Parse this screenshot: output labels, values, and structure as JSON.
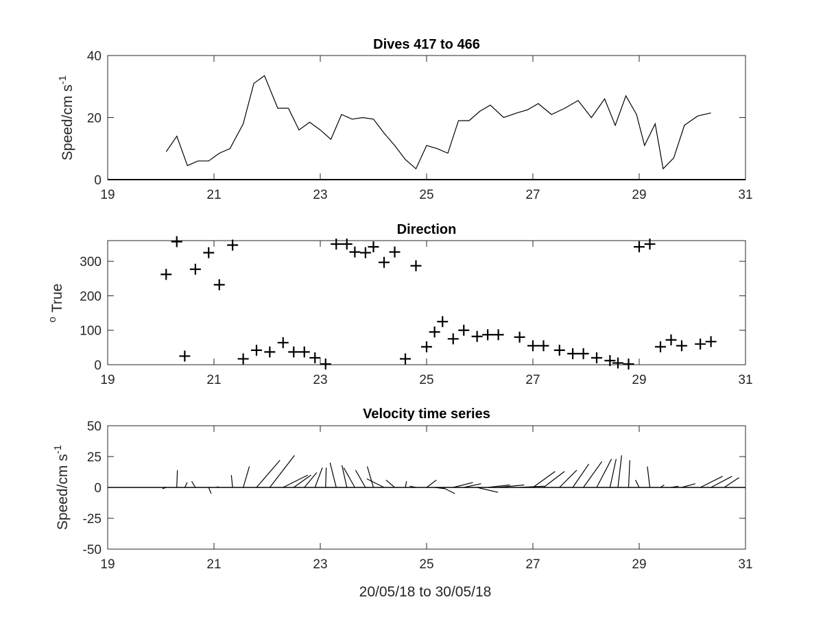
{
  "chart_data": [
    {
      "type": "line",
      "title": "Dives 417 to 466",
      "ylabel": "Speed/cm s",
      "ylabel_sup": "-1",
      "xlim": [
        19,
        31
      ],
      "ylim": [
        0,
        40
      ],
      "xticks": [
        19,
        21,
        23,
        25,
        27,
        29,
        31
      ],
      "yticks": [
        0,
        20,
        40
      ],
      "baseline": 0,
      "x": [
        20.1,
        20.3,
        20.5,
        20.7,
        20.9,
        21.1,
        21.3,
        21.55,
        21.75,
        21.95,
        22.2,
        22.4,
        22.6,
        22.8,
        23.0,
        23.2,
        23.4,
        23.6,
        23.8,
        24.0,
        24.2,
        24.4,
        24.6,
        24.8,
        25.0,
        25.2,
        25.4,
        25.6,
        25.8,
        26.0,
        26.2,
        26.45,
        26.7,
        26.9,
        27.1,
        27.35,
        27.6,
        27.85,
        28.1,
        28.35,
        28.55,
        28.75,
        28.95,
        29.1,
        29.3,
        29.45,
        29.65,
        29.85,
        30.1,
        30.35
      ],
      "y": [
        9,
        14,
        4.5,
        6,
        6,
        8.5,
        10,
        18,
        31,
        33.5,
        23,
        23,
        16,
        18.5,
        16,
        13,
        21,
        19.5,
        20,
        19.5,
        15,
        11,
        6.5,
        3.5,
        11,
        10,
        8.5,
        19,
        19,
        22,
        24,
        20,
        21.5,
        22.5,
        24.5,
        21,
        23,
        25.5,
        20,
        26,
        17.5,
        27,
        21,
        11,
        18,
        3.5,
        7,
        17.5,
        20.5,
        21.5
      ]
    },
    {
      "type": "scatter",
      "title": "Direction",
      "ylabel": "True",
      "ylabel_sup": "o",
      "xlim": [
        19,
        31
      ],
      "ylim": [
        0,
        360
      ],
      "xticks": [
        19,
        21,
        23,
        25,
        27,
        29,
        31
      ],
      "yticks": [
        0,
        100,
        200,
        300
      ],
      "marker": "+",
      "x": [
        20.1,
        20.3,
        20.45,
        20.65,
        20.9,
        21.1,
        21.35,
        21.55,
        21.8,
        22.05,
        22.3,
        22.5,
        22.7,
        22.9,
        23.1,
        23.3,
        23.5,
        23.65,
        23.85,
        24.0,
        24.2,
        24.4,
        24.6,
        24.8,
        25.0,
        25.15,
        25.3,
        25.5,
        25.7,
        25.95,
        26.15,
        26.35,
        26.75,
        27.0,
        27.2,
        27.5,
        27.75,
        27.95,
        28.2,
        28.45,
        28.6,
        28.8,
        29.0,
        29.2,
        29.4,
        29.6,
        29.8,
        30.15,
        30.35
      ],
      "y": [
        262,
        357,
        25,
        277,
        325,
        232,
        347,
        17,
        42,
        37,
        64,
        37,
        37,
        20,
        2,
        350,
        350,
        327,
        325,
        342,
        297,
        327,
        17,
        287,
        52,
        95,
        125,
        75,
        100,
        82,
        87,
        87,
        80,
        55,
        55,
        42,
        32,
        32,
        20,
        12,
        5,
        2,
        342,
        350,
        52,
        72,
        55,
        60,
        67
      ]
    },
    {
      "type": "stick",
      "title": "Velocity time series",
      "ylabel": "Speed/cm s",
      "ylabel_sup": "-1",
      "xlabel": "20/05/18 to 30/05/18",
      "xlim": [
        19,
        31
      ],
      "ylim": [
        -50,
        50
      ],
      "xticks": [
        19,
        21,
        23,
        25,
        27,
        29,
        31
      ],
      "yticks": [
        -50,
        -25,
        0,
        25,
        50
      ],
      "baseline": 0,
      "sticks": [
        {
          "t": 20.1,
          "u": -3,
          "v": -1
        },
        {
          "t": 20.3,
          "u": 0.5,
          "v": 14
        },
        {
          "t": 20.45,
          "u": 2,
          "v": 4
        },
        {
          "t": 20.65,
          "u": -3,
          "v": 5
        },
        {
          "t": 20.9,
          "u": 2,
          "v": -5
        },
        {
          "t": 21.1,
          "u": -2,
          "v": 0.5
        },
        {
          "t": 21.35,
          "u": -1,
          "v": 10
        },
        {
          "t": 21.55,
          "u": 5,
          "v": 17
        },
        {
          "t": 21.8,
          "u": 19,
          "v": 22
        },
        {
          "t": 22.05,
          "u": 20,
          "v": 26
        },
        {
          "t": 22.3,
          "u": 20,
          "v": 10
        },
        {
          "t": 22.5,
          "u": 14,
          "v": 10
        },
        {
          "t": 22.7,
          "u": 10,
          "v": 12
        },
        {
          "t": 22.9,
          "u": 6,
          "v": 16
        },
        {
          "t": 23.1,
          "u": 0.5,
          "v": 16
        },
        {
          "t": 23.3,
          "u": -5,
          "v": 20
        },
        {
          "t": 23.5,
          "u": -4,
          "v": 18
        },
        {
          "t": 23.65,
          "u": -9,
          "v": 16
        },
        {
          "t": 23.85,
          "u": -8,
          "v": 14
        },
        {
          "t": 24.0,
          "u": -5,
          "v": 17
        },
        {
          "t": 24.2,
          "u": -14,
          "v": 7
        },
        {
          "t": 24.4,
          "u": -7,
          "v": 6
        },
        {
          "t": 24.6,
          "u": 1,
          "v": 5
        },
        {
          "t": 24.8,
          "u": -5,
          "v": 1
        },
        {
          "t": 25.0,
          "u": 8,
          "v": 6
        },
        {
          "t": 25.15,
          "u": 8,
          "v": -1
        },
        {
          "t": 25.3,
          "u": 10,
          "v": -5
        },
        {
          "t": 25.5,
          "u": 16,
          "v": 4
        },
        {
          "t": 25.7,
          "u": 14,
          "v": 3
        },
        {
          "t": 25.95,
          "u": 17,
          "v": -4
        },
        {
          "t": 26.15,
          "u": 18,
          "v": 2
        },
        {
          "t": 26.35,
          "u": 21,
          "v": 2
        },
        {
          "t": 26.75,
          "u": 20,
          "v": 1
        },
        {
          "t": 27.0,
          "u": 18,
          "v": 13
        },
        {
          "t": 27.2,
          "u": 17,
          "v": 13
        },
        {
          "t": 27.5,
          "u": 14,
          "v": 14
        },
        {
          "t": 27.75,
          "u": 13,
          "v": 19
        },
        {
          "t": 27.95,
          "u": 15,
          "v": 21
        },
        {
          "t": 28.2,
          "u": 12,
          "v": 23
        },
        {
          "t": 28.45,
          "u": 5,
          "v": 23
        },
        {
          "t": 28.6,
          "u": 3,
          "v": 26
        },
        {
          "t": 28.8,
          "u": 1,
          "v": 22
        },
        {
          "t": 29.0,
          "u": -3,
          "v": 6
        },
        {
          "t": 29.2,
          "u": -2,
          "v": 17
        },
        {
          "t": 29.4,
          "u": 3,
          "v": 2
        },
        {
          "t": 29.6,
          "u": 6,
          "v": 1
        },
        {
          "t": 29.8,
          "u": 11,
          "v": 3
        },
        {
          "t": 30.15,
          "u": 18,
          "v": 9
        },
        {
          "t": 30.35,
          "u": 17,
          "v": 9
        },
        {
          "t": 30.6,
          "u": 12,
          "v": 8
        }
      ]
    }
  ]
}
